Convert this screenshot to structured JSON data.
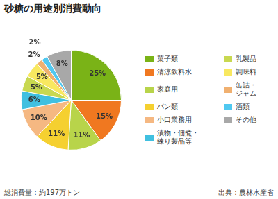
{
  "chart_data": {
    "type": "pie",
    "title": "砂糖の用途別消費動向",
    "subtitle": "総消費量：約197万トン",
    "annotations": [
      "出典：農林水産省"
    ],
    "categories": [
      "菓子類",
      "清涼飲料水",
      "家庭用",
      "パン類",
      "小口業務用",
      "漬物・佃煮・\n練り製品等",
      "乳製品",
      "調味料",
      "缶詰・\nジャム",
      "酒類",
      "その他"
    ],
    "values": [
      25,
      15,
      11,
      11,
      10,
      6,
      5,
      5,
      2,
      2,
      8
    ],
    "value_labels": [
      "25%",
      "15%",
      "11%",
      "11%",
      "10%",
      "6%",
      "5%",
      "5%",
      "2%",
      "2%",
      "8%"
    ],
    "colors": [
      "#7ab317",
      "#f07820",
      "#b8d44a",
      "#f5d030",
      "#f5b882",
      "#40c0e0",
      "#c8d850",
      "#f8e860",
      "#f0b070",
      "#50c8f0",
      "#a8a8a8"
    ],
    "data_labels": true,
    "legend": "right"
  }
}
